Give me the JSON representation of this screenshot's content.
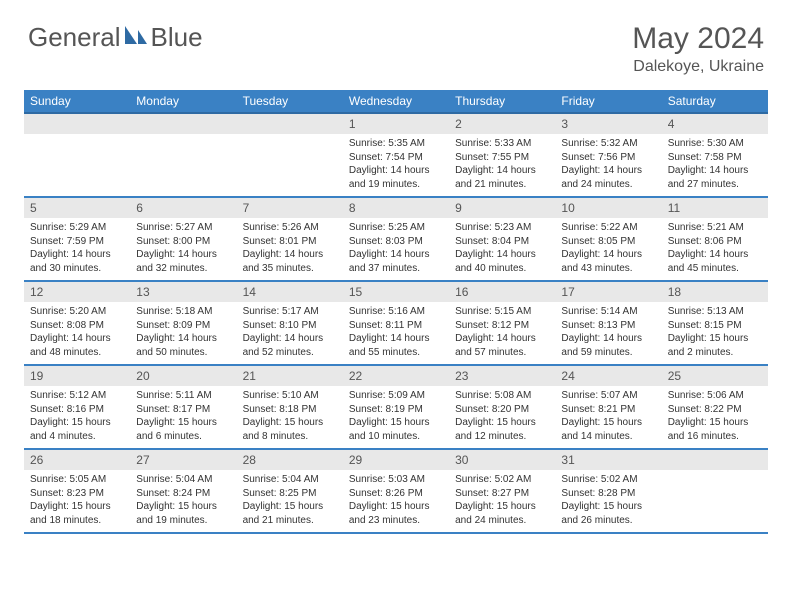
{
  "brand": {
    "part1": "General",
    "part2": "Blue"
  },
  "title": "May 2024",
  "location": "Dalekoye, Ukraine",
  "colors": {
    "header_bg": "#3a81c4",
    "header_border": "#2e6aa3",
    "row_border": "#3a81c4",
    "daynum_bg": "#e8e8e8",
    "text": "#333333",
    "muted": "#555555",
    "logo_accent": "#2e6aa3"
  },
  "weekdays": [
    "Sunday",
    "Monday",
    "Tuesday",
    "Wednesday",
    "Thursday",
    "Friday",
    "Saturday"
  ],
  "weeks": [
    [
      null,
      null,
      null,
      {
        "n": "1",
        "sr": "5:35 AM",
        "ss": "7:54 PM",
        "dl": "14 hours and 19 minutes."
      },
      {
        "n": "2",
        "sr": "5:33 AM",
        "ss": "7:55 PM",
        "dl": "14 hours and 21 minutes."
      },
      {
        "n": "3",
        "sr": "5:32 AM",
        "ss": "7:56 PM",
        "dl": "14 hours and 24 minutes."
      },
      {
        "n": "4",
        "sr": "5:30 AM",
        "ss": "7:58 PM",
        "dl": "14 hours and 27 minutes."
      }
    ],
    [
      {
        "n": "5",
        "sr": "5:29 AM",
        "ss": "7:59 PM",
        "dl": "14 hours and 30 minutes."
      },
      {
        "n": "6",
        "sr": "5:27 AM",
        "ss": "8:00 PM",
        "dl": "14 hours and 32 minutes."
      },
      {
        "n": "7",
        "sr": "5:26 AM",
        "ss": "8:01 PM",
        "dl": "14 hours and 35 minutes."
      },
      {
        "n": "8",
        "sr": "5:25 AM",
        "ss": "8:03 PM",
        "dl": "14 hours and 37 minutes."
      },
      {
        "n": "9",
        "sr": "5:23 AM",
        "ss": "8:04 PM",
        "dl": "14 hours and 40 minutes."
      },
      {
        "n": "10",
        "sr": "5:22 AM",
        "ss": "8:05 PM",
        "dl": "14 hours and 43 minutes."
      },
      {
        "n": "11",
        "sr": "5:21 AM",
        "ss": "8:06 PM",
        "dl": "14 hours and 45 minutes."
      }
    ],
    [
      {
        "n": "12",
        "sr": "5:20 AM",
        "ss": "8:08 PM",
        "dl": "14 hours and 48 minutes."
      },
      {
        "n": "13",
        "sr": "5:18 AM",
        "ss": "8:09 PM",
        "dl": "14 hours and 50 minutes."
      },
      {
        "n": "14",
        "sr": "5:17 AM",
        "ss": "8:10 PM",
        "dl": "14 hours and 52 minutes."
      },
      {
        "n": "15",
        "sr": "5:16 AM",
        "ss": "8:11 PM",
        "dl": "14 hours and 55 minutes."
      },
      {
        "n": "16",
        "sr": "5:15 AM",
        "ss": "8:12 PM",
        "dl": "14 hours and 57 minutes."
      },
      {
        "n": "17",
        "sr": "5:14 AM",
        "ss": "8:13 PM",
        "dl": "14 hours and 59 minutes."
      },
      {
        "n": "18",
        "sr": "5:13 AM",
        "ss": "8:15 PM",
        "dl": "15 hours and 2 minutes."
      }
    ],
    [
      {
        "n": "19",
        "sr": "5:12 AM",
        "ss": "8:16 PM",
        "dl": "15 hours and 4 minutes."
      },
      {
        "n": "20",
        "sr": "5:11 AM",
        "ss": "8:17 PM",
        "dl": "15 hours and 6 minutes."
      },
      {
        "n": "21",
        "sr": "5:10 AM",
        "ss": "8:18 PM",
        "dl": "15 hours and 8 minutes."
      },
      {
        "n": "22",
        "sr": "5:09 AM",
        "ss": "8:19 PM",
        "dl": "15 hours and 10 minutes."
      },
      {
        "n": "23",
        "sr": "5:08 AM",
        "ss": "8:20 PM",
        "dl": "15 hours and 12 minutes."
      },
      {
        "n": "24",
        "sr": "5:07 AM",
        "ss": "8:21 PM",
        "dl": "15 hours and 14 minutes."
      },
      {
        "n": "25",
        "sr": "5:06 AM",
        "ss": "8:22 PM",
        "dl": "15 hours and 16 minutes."
      }
    ],
    [
      {
        "n": "26",
        "sr": "5:05 AM",
        "ss": "8:23 PM",
        "dl": "15 hours and 18 minutes."
      },
      {
        "n": "27",
        "sr": "5:04 AM",
        "ss": "8:24 PM",
        "dl": "15 hours and 19 minutes."
      },
      {
        "n": "28",
        "sr": "5:04 AM",
        "ss": "8:25 PM",
        "dl": "15 hours and 21 minutes."
      },
      {
        "n": "29",
        "sr": "5:03 AM",
        "ss": "8:26 PM",
        "dl": "15 hours and 23 minutes."
      },
      {
        "n": "30",
        "sr": "5:02 AM",
        "ss": "8:27 PM",
        "dl": "15 hours and 24 minutes."
      },
      {
        "n": "31",
        "sr": "5:02 AM",
        "ss": "8:28 PM",
        "dl": "15 hours and 26 minutes."
      },
      null
    ]
  ],
  "labels": {
    "sunrise": "Sunrise:",
    "sunset": "Sunset:",
    "daylight": "Daylight:"
  }
}
